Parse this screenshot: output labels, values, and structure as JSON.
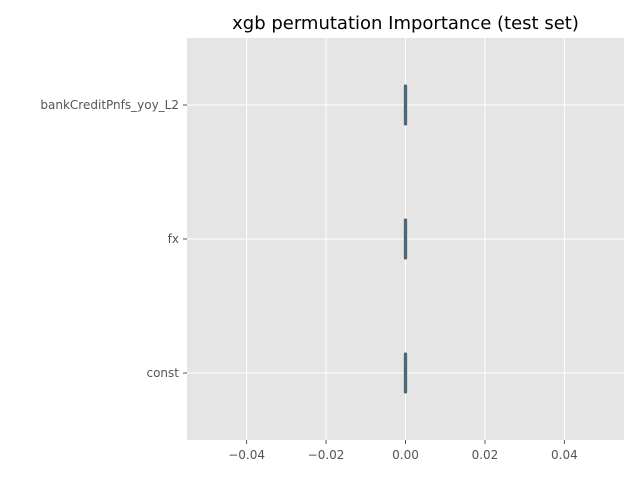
{
  "chart_data": {
    "type": "boxplot",
    "orientation": "horizontal",
    "title": "xgb permutation Importance (test set)",
    "xlabel": "",
    "ylabel": "",
    "categories": [
      "bankCreditPnfs_yoy_L2",
      "fx",
      "const"
    ],
    "values": [
      0.0,
      0.0,
      0.0
    ],
    "xlim": [
      -0.055,
      0.055
    ],
    "xticks": [
      -0.04,
      -0.02,
      0.0,
      0.02,
      0.04
    ],
    "xtick_labels": [
      "−0.04",
      "−0.02",
      "0.00",
      "0.02",
      "0.04"
    ],
    "grid": true,
    "style": "ggplot",
    "colors": {
      "plot_bg": "#e5e5e5",
      "grid": "#ffffff",
      "box_fill": "#348abd",
      "box_edge": "#555555",
      "tick_text": "#555555",
      "title_text": "#000000"
    }
  }
}
